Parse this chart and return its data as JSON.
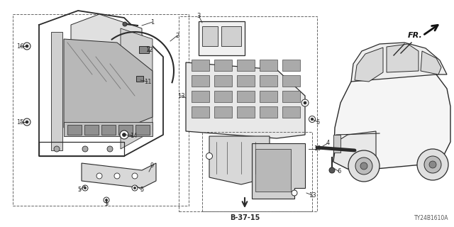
{
  "part_number": "TY24B1610A",
  "bg_color": "#ffffff",
  "line_color": "#2a2a2a",
  "gray_color": "#888888",
  "light_gray": "#cccccc",
  "dashed_color": "#666666",
  "figsize": [
    6.4,
    3.2
  ],
  "dpi": 100,
  "fr_label": "FR.",
  "ref_label": "B-37-15"
}
